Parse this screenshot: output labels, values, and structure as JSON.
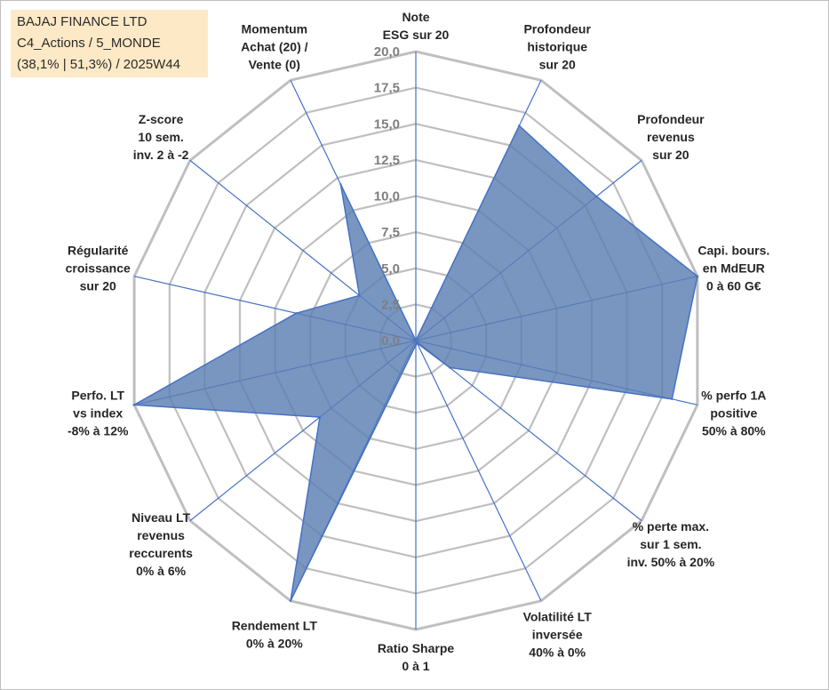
{
  "title_box": {
    "line1": "BAJAJ FINANCE LTD",
    "line2": "C4_Actions / 5_MONDE",
    "line3": "(38,1% | 51,3%) / 2025W44"
  },
  "colors": {
    "fill": "#5b7fb3",
    "stroke": "#4472c4",
    "grid": "#bfbfbf",
    "spoke": "#4472c4",
    "title_bg": "#fde9c6"
  },
  "chart_data": {
    "type": "radar",
    "rmax": 20,
    "tick_labels": [
      "0,0",
      "2,5",
      "5,0",
      "7,5",
      "10,0",
      "12,5",
      "15,0",
      "17,5",
      "20,0"
    ],
    "categories": [
      [
        "Note",
        "ESG sur 20"
      ],
      [
        "Profondeur",
        "historique",
        "sur 20"
      ],
      [
        "Profondeur",
        "revenus",
        "sur 20"
      ],
      [
        "Capi. bours.",
        "en MdEUR",
        "0 à 60 G€"
      ],
      [
        "% perfo 1A",
        "positive",
        "50% à 80%"
      ],
      [
        "% perte max.",
        "sur 1 sem.",
        "inv. 50% à 20%"
      ],
      [
        "Volatilité LT",
        "inversée",
        "40% à 0%"
      ],
      [
        "Ratio Sharpe",
        "0 à 1"
      ],
      [
        "Rendement LT",
        "0% à 20%"
      ],
      [
        "Niveau LT",
        "revenus",
        "reccurents",
        "0% à 6%"
      ],
      [
        "Perfo. LT",
        "vs index",
        "-8% à 12%"
      ],
      [
        "Régularité",
        "croissance",
        "sur 20"
      ],
      [
        "Z-score",
        "10 sem.",
        "inv. 2 à -2"
      ],
      [
        "Momentum",
        "Achat (20) /",
        "Vente (0)"
      ]
    ],
    "values": [
      0,
      16.5,
      16.0,
      20.0,
      18.2,
      3.0,
      0.2,
      0.3,
      20.0,
      8.5,
      20.0,
      8.5,
      5.0,
      12.0
    ]
  }
}
